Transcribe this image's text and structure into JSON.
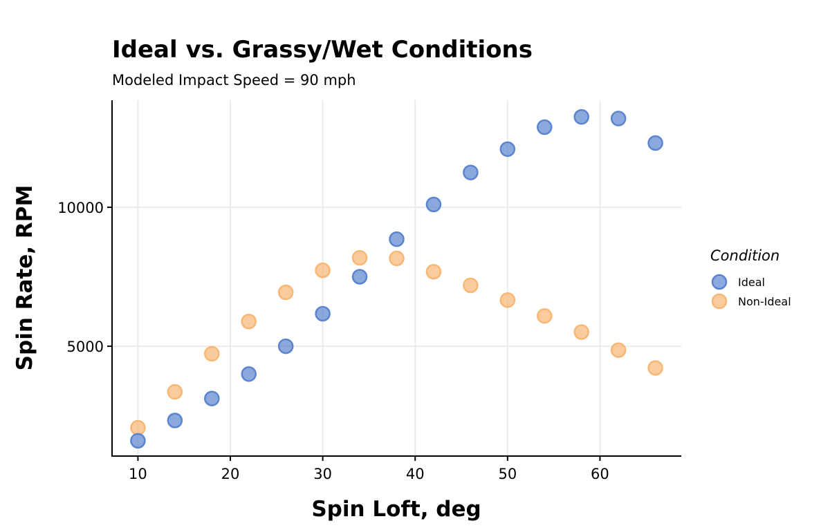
{
  "chart_data": {
    "type": "scatter",
    "title": "Ideal vs. Grassy/Wet Conditions",
    "subtitle": "Modeled Impact Speed = 90 mph",
    "xlabel": "Spin Loft, deg",
    "ylabel": "Spin Rate, RPM",
    "xlim": [
      7.2,
      68.8
    ],
    "ylim": [
      1050,
      13850
    ],
    "x_ticks": [
      10,
      20,
      30,
      40,
      50,
      60
    ],
    "y_ticks": [
      5000,
      10000
    ],
    "grid": true,
    "legend": {
      "title": "Condition",
      "position": "right"
    },
    "series": [
      {
        "name": "Ideal",
        "color": "#5b84cf",
        "x": [
          10,
          14,
          18,
          22,
          26,
          30,
          34,
          38,
          42,
          46,
          50,
          54,
          58,
          62,
          66
        ],
        "y": [
          1600,
          2330,
          3120,
          4000,
          5000,
          6170,
          7500,
          8850,
          10100,
          11250,
          12090,
          12880,
          13250,
          13190,
          12310
        ]
      },
      {
        "name": "Non-Ideal",
        "color": "#f8b774",
        "x": [
          10,
          14,
          18,
          22,
          26,
          30,
          34,
          38,
          42,
          46,
          50,
          54,
          58,
          62,
          66
        ],
        "y": [
          2070,
          3360,
          4730,
          5890,
          6940,
          7730,
          8180,
          8160,
          7680,
          7190,
          6660,
          6090,
          5510,
          4860,
          4220
        ]
      }
    ]
  }
}
